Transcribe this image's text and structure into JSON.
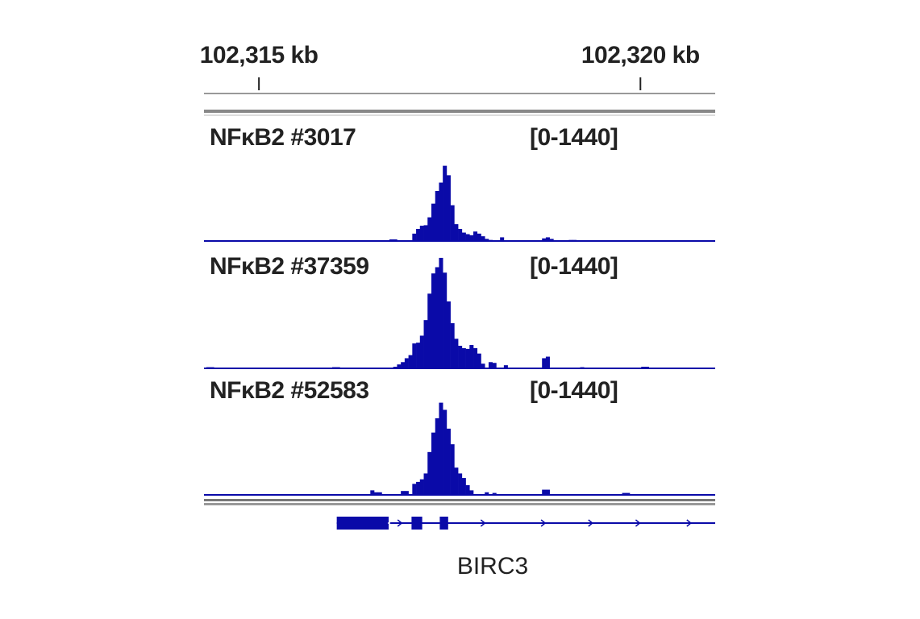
{
  "chart_data": {
    "type": "bar",
    "ruler": {
      "ticks": [
        {
          "label": "102,315 kb",
          "position_kb": 102315
        },
        {
          "label": "102,320 kb",
          "position_kb": 102320
        }
      ]
    },
    "x_range_kb": [
      102314.28,
      102320.98
    ],
    "bin_kb": 0.05,
    "colors": {
      "signal": "#0a0aa8",
      "divider": "#888888",
      "text": "#222222"
    },
    "tracks": [
      {
        "name": "NFκB2 #3017",
        "range": "[0-1440]",
        "ylim": [
          0,
          1440
        ],
        "bins": [
          {
            "start": 102316.46,
            "value": 10
          },
          {
            "start": 102316.51,
            "value": 10
          },
          {
            "start": 102316.71,
            "value": 30
          },
          {
            "start": 102316.76,
            "value": 30
          },
          {
            "start": 102317.01,
            "value": 140
          },
          {
            "start": 102317.06,
            "value": 230
          },
          {
            "start": 102317.11,
            "value": 290
          },
          {
            "start": 102317.16,
            "value": 300
          },
          {
            "start": 102317.21,
            "value": 450
          },
          {
            "start": 102317.26,
            "value": 710
          },
          {
            "start": 102317.31,
            "value": 950
          },
          {
            "start": 102317.36,
            "value": 1110
          },
          {
            "start": 102317.41,
            "value": 1430
          },
          {
            "start": 102317.46,
            "value": 1250
          },
          {
            "start": 102317.51,
            "value": 680
          },
          {
            "start": 102317.56,
            "value": 320
          },
          {
            "start": 102317.61,
            "value": 230
          },
          {
            "start": 102317.66,
            "value": 160
          },
          {
            "start": 102317.71,
            "value": 130
          },
          {
            "start": 102317.76,
            "value": 110
          },
          {
            "start": 102317.81,
            "value": 180
          },
          {
            "start": 102317.86,
            "value": 140
          },
          {
            "start": 102317.91,
            "value": 90
          },
          {
            "start": 102317.96,
            "value": 40
          },
          {
            "start": 102318.01,
            "value": 20
          },
          {
            "start": 102318.16,
            "value": 70
          },
          {
            "start": 102318.71,
            "value": 50
          },
          {
            "start": 102318.76,
            "value": 70
          },
          {
            "start": 102318.81,
            "value": 40
          },
          {
            "start": 102319.06,
            "value": 20
          },
          {
            "start": 102319.11,
            "value": 20
          },
          {
            "start": 102319.66,
            "value": 15
          },
          {
            "start": 102320.11,
            "value": 15
          }
        ]
      },
      {
        "name": "NFκB2 #37359",
        "range": "[0-1440]",
        "ylim": [
          0,
          1440
        ],
        "bins": [
          {
            "start": 102314.31,
            "value": 15
          },
          {
            "start": 102314.36,
            "value": 15
          },
          {
            "start": 102315.96,
            "value": 15
          },
          {
            "start": 102316.01,
            "value": 15
          },
          {
            "start": 102316.76,
            "value": 20
          },
          {
            "start": 102316.81,
            "value": 50
          },
          {
            "start": 102316.86,
            "value": 80
          },
          {
            "start": 102316.91,
            "value": 130
          },
          {
            "start": 102316.96,
            "value": 170
          },
          {
            "start": 102317.01,
            "value": 320
          },
          {
            "start": 102317.06,
            "value": 330
          },
          {
            "start": 102317.11,
            "value": 420
          },
          {
            "start": 102317.16,
            "value": 620
          },
          {
            "start": 102317.21,
            "value": 960
          },
          {
            "start": 102317.26,
            "value": 1220
          },
          {
            "start": 102317.31,
            "value": 1300
          },
          {
            "start": 102317.36,
            "value": 1420
          },
          {
            "start": 102317.41,
            "value": 1230
          },
          {
            "start": 102317.46,
            "value": 860
          },
          {
            "start": 102317.51,
            "value": 580
          },
          {
            "start": 102317.56,
            "value": 380
          },
          {
            "start": 102317.61,
            "value": 290
          },
          {
            "start": 102317.66,
            "value": 260
          },
          {
            "start": 102317.71,
            "value": 250
          },
          {
            "start": 102317.76,
            "value": 300
          },
          {
            "start": 102317.81,
            "value": 260
          },
          {
            "start": 102317.86,
            "value": 190
          },
          {
            "start": 102317.91,
            "value": 60
          },
          {
            "start": 102318.01,
            "value": 80
          },
          {
            "start": 102318.06,
            "value": 70
          },
          {
            "start": 102318.21,
            "value": 40
          },
          {
            "start": 102318.71,
            "value": 130
          },
          {
            "start": 102318.76,
            "value": 150
          },
          {
            "start": 102319.21,
            "value": 15
          },
          {
            "start": 102320.01,
            "value": 20
          },
          {
            "start": 102320.06,
            "value": 20
          }
        ]
      },
      {
        "name": "NFκB2 #52583",
        "range": "[0-1440]",
        "ylim": [
          0,
          1440
        ],
        "bins": [
          {
            "start": 102316.46,
            "value": 70
          },
          {
            "start": 102316.51,
            "value": 40
          },
          {
            "start": 102316.56,
            "value": 40
          },
          {
            "start": 102316.86,
            "value": 60
          },
          {
            "start": 102316.91,
            "value": 60
          },
          {
            "start": 102317.01,
            "value": 170
          },
          {
            "start": 102317.06,
            "value": 200
          },
          {
            "start": 102317.11,
            "value": 240
          },
          {
            "start": 102317.16,
            "value": 330
          },
          {
            "start": 102317.21,
            "value": 660
          },
          {
            "start": 102317.26,
            "value": 960
          },
          {
            "start": 102317.31,
            "value": 1180
          },
          {
            "start": 102317.36,
            "value": 1420
          },
          {
            "start": 102317.41,
            "value": 1310
          },
          {
            "start": 102317.46,
            "value": 1020
          },
          {
            "start": 102317.51,
            "value": 780
          },
          {
            "start": 102317.56,
            "value": 420
          },
          {
            "start": 102317.61,
            "value": 330
          },
          {
            "start": 102317.66,
            "value": 260
          },
          {
            "start": 102317.71,
            "value": 150
          },
          {
            "start": 102317.76,
            "value": 70
          },
          {
            "start": 102317.96,
            "value": 40
          },
          {
            "start": 102318.06,
            "value": 30
          },
          {
            "start": 102318.71,
            "value": 80
          },
          {
            "start": 102318.76,
            "value": 80
          },
          {
            "start": 102319.76,
            "value": 30
          },
          {
            "start": 102319.81,
            "value": 30
          }
        ]
      }
    ],
    "gene": {
      "name": "BIRC3",
      "strand": "+",
      "span_kb": [
        102316.02,
        102320.98
      ],
      "exons": [
        {
          "start": 102316.02,
          "end": 102316.7
        },
        {
          "start": 102317.0,
          "end": 102317.14
        },
        {
          "start": 102317.37,
          "end": 102317.48
        }
      ],
      "arrows_kb": [
        102316.85,
        102317.94,
        102318.73,
        102319.35,
        102319.97,
        102320.64
      ],
      "reverse_arrow_kb": 102316.72
    }
  }
}
